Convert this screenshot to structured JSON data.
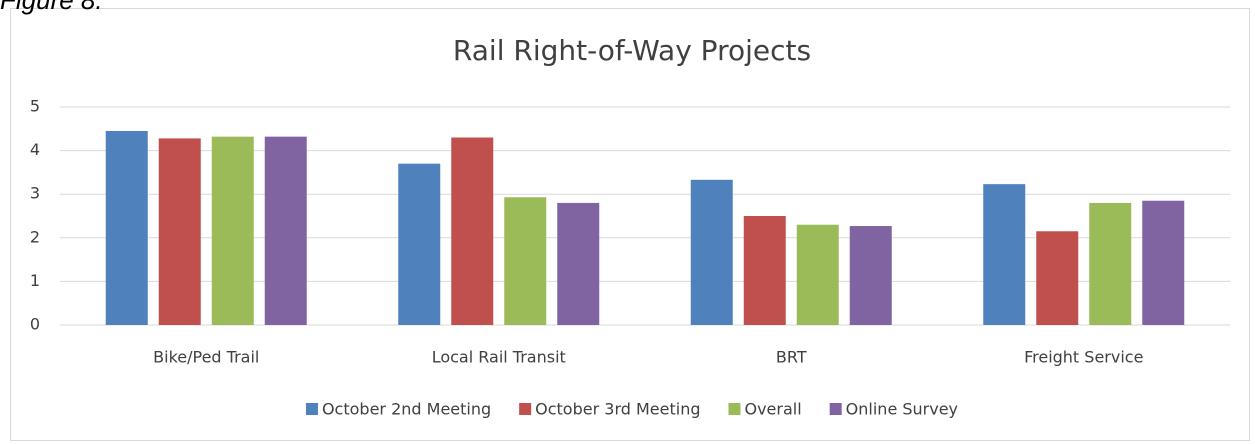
{
  "figure_label": "Figure 8.",
  "chart_data": {
    "type": "bar",
    "title": "Rail Right-of-Way Projects",
    "categories": [
      "Bike/Ped Trail",
      "Local Rail Transit",
      "BRT",
      "Freight Service"
    ],
    "series": [
      {
        "name": "October 2nd Meeting",
        "color": "#4f81bd",
        "values": [
          4.45,
          3.7,
          3.33,
          3.23
        ]
      },
      {
        "name": "October 3rd Meeting",
        "color": "#c0504d",
        "values": [
          4.28,
          4.3,
          2.5,
          2.15
        ]
      },
      {
        "name": "Overall",
        "color": "#9bbb59",
        "values": [
          4.32,
          2.93,
          2.3,
          2.8
        ]
      },
      {
        "name": "Online Survey",
        "color": "#8064a2",
        "values": [
          4.32,
          2.8,
          2.27,
          2.85
        ]
      }
    ],
    "ylim": [
      0,
      5
    ],
    "yticks": [
      0,
      1,
      2,
      3,
      4,
      5
    ],
    "grid": true,
    "legend": "bottom"
  }
}
